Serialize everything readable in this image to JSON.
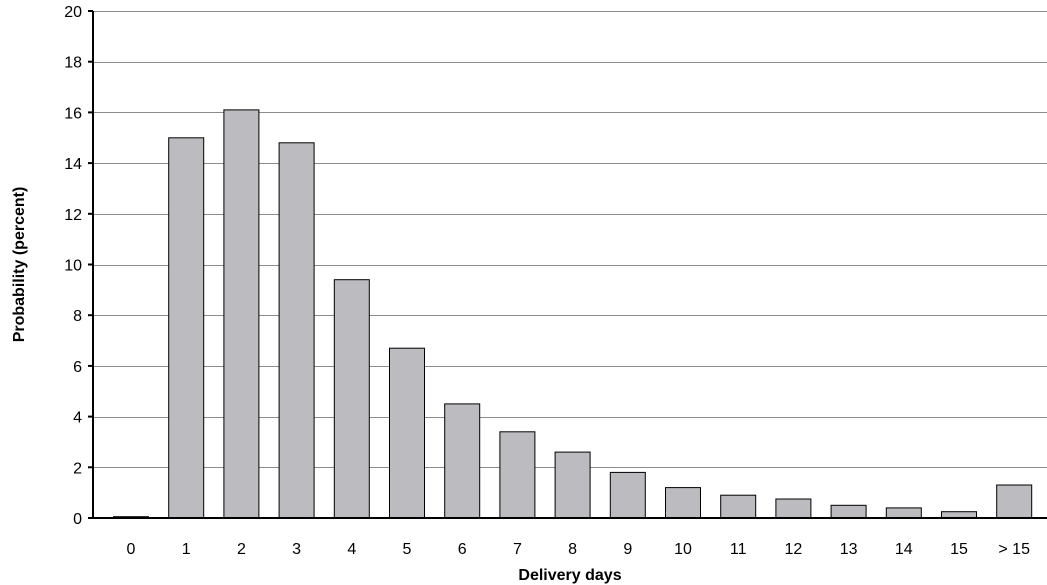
{
  "chart_data": {
    "type": "bar",
    "title": "",
    "xlabel": "Delivery days",
    "ylabel": "Probability (percent)",
    "categories": [
      "0",
      "1",
      "2",
      "3",
      "4",
      "5",
      "6",
      "7",
      "8",
      "9",
      "10",
      "11",
      "12",
      "13",
      "14",
      "15",
      "> 15"
    ],
    "values": [
      0.05,
      15.0,
      16.1,
      14.8,
      9.4,
      6.7,
      4.5,
      3.4,
      2.6,
      1.8,
      1.2,
      0.9,
      0.75,
      0.5,
      0.4,
      0.25,
      1.3
    ],
    "ylim": [
      0,
      20
    ],
    "yticks": [
      0,
      2,
      4,
      6,
      8,
      10,
      12,
      14,
      16,
      18,
      20
    ],
    "grid": true,
    "legend": "none",
    "colors": {
      "bar_fill": "#bcbcc0",
      "bar_stroke": "#000000",
      "grid": "#8c8c8c",
      "axis": "#000000"
    }
  }
}
